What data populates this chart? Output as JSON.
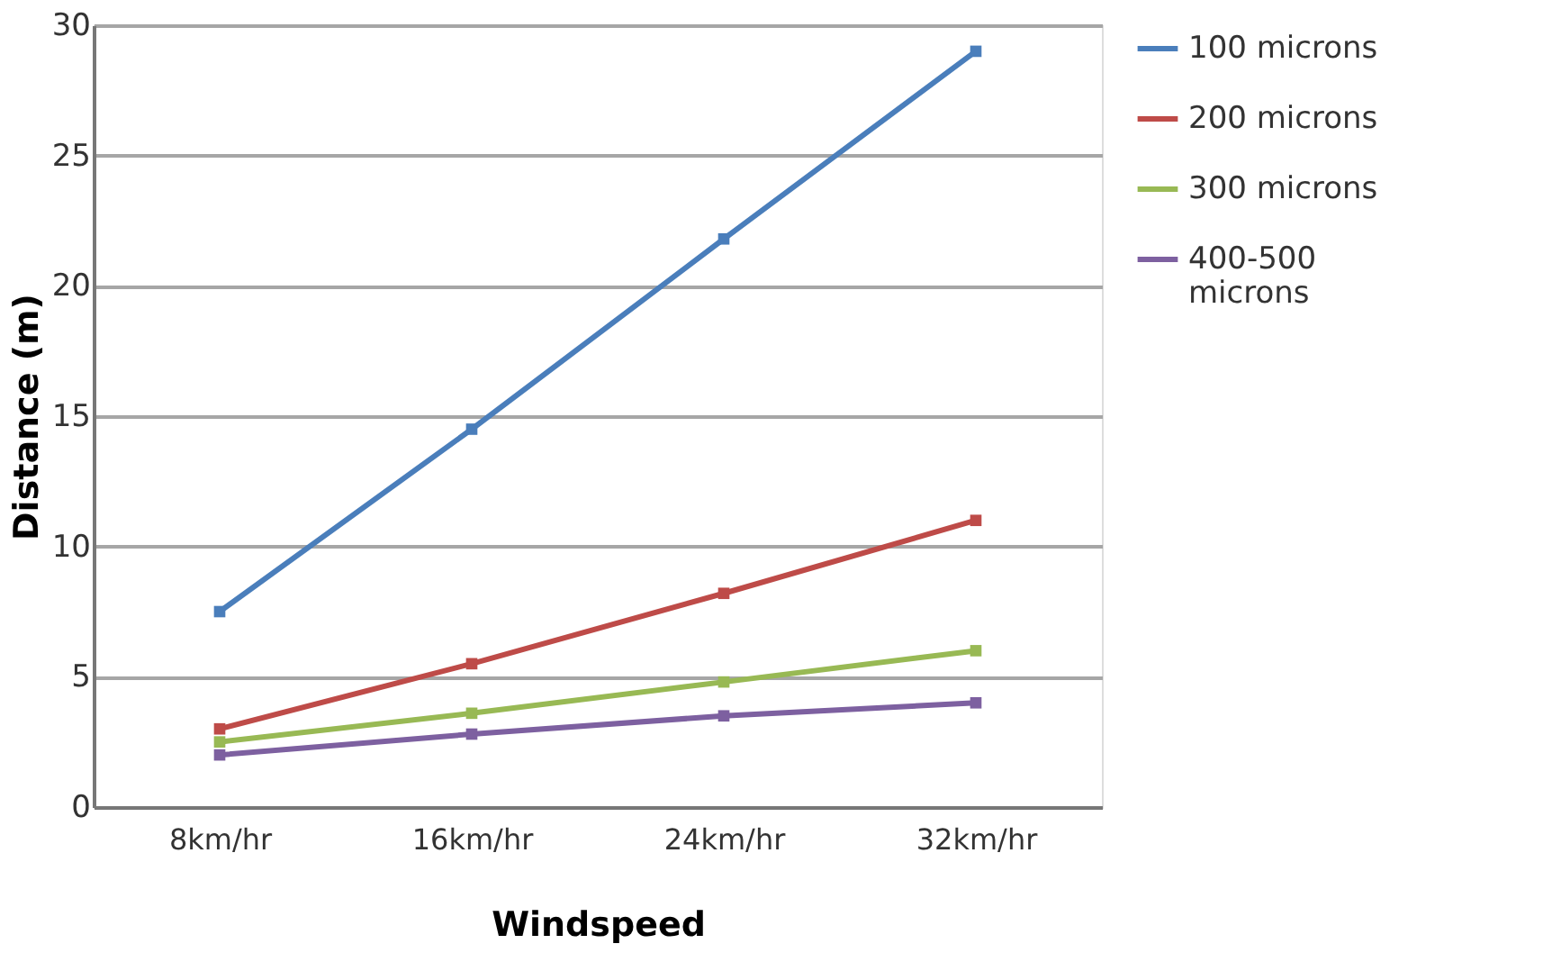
{
  "chart_data": {
    "type": "line",
    "xlabel": "Windspeed",
    "ylabel": "Distance (m)",
    "categories": [
      "8km/hr",
      "16km/hr",
      "24km/hr",
      "32km/hr"
    ],
    "series": [
      {
        "name": "100 microns",
        "color": "#4a7ebb",
        "values": [
          7.5,
          14.5,
          21.8,
          29
        ]
      },
      {
        "name": "200 microns",
        "color": "#be4b48",
        "values": [
          3,
          5.5,
          8.2,
          11
        ]
      },
      {
        "name": "300 microns",
        "color": "#98b954",
        "values": [
          2.5,
          3.6,
          4.8,
          6
        ]
      },
      {
        "name": "400-500 microns",
        "color": "#7d60a0",
        "values": [
          2,
          2.8,
          3.5,
          4
        ]
      }
    ],
    "ylim": [
      0,
      30
    ],
    "yticks": [
      0,
      5,
      10,
      15,
      20,
      25,
      30
    ],
    "grid": "y",
    "legend": "right",
    "marker": "square",
    "line_style": "solid"
  }
}
